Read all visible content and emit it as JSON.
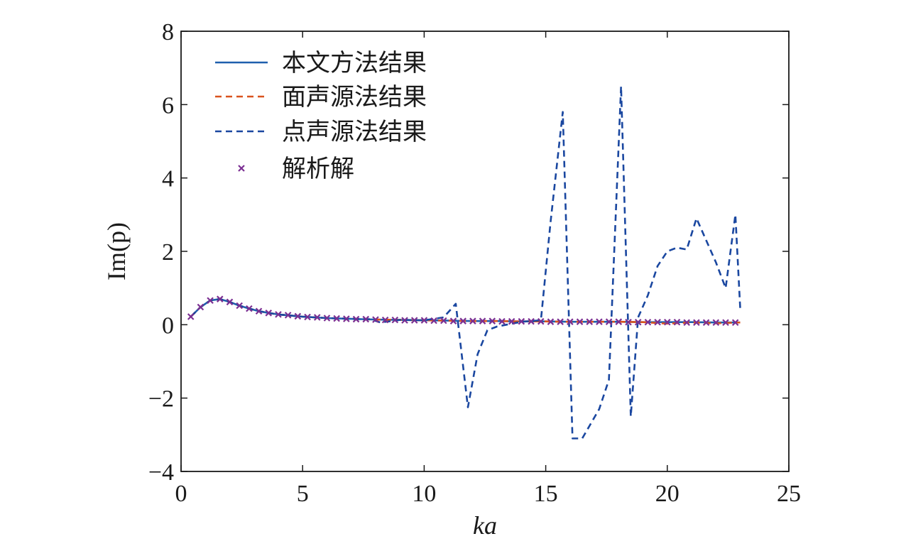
{
  "chart_data": {
    "type": "line",
    "xlabel": "ka",
    "ylabel": "Im(p)",
    "xlim": [
      0,
      25
    ],
    "ylim": [
      -4,
      8
    ],
    "xticks": [
      0,
      5,
      10,
      15,
      20,
      25
    ],
    "yticks": [
      -4,
      -2,
      0,
      2,
      4,
      6,
      8
    ],
    "xtick_labels": [
      "0",
      "5",
      "10",
      "15",
      "20",
      "25"
    ],
    "ytick_labels": [
      "−4",
      "−2",
      "0",
      "2",
      "4",
      "6",
      "8"
    ],
    "grid": false,
    "legend_position": "top-left",
    "series": [
      {
        "name": "本文方法结果",
        "style": "solid",
        "color": "#1f5fae",
        "x": [
          0.4,
          0.8,
          1.2,
          1.6,
          2.0,
          2.4,
          2.8,
          3.2,
          3.6,
          4.0,
          4.5,
          5.0,
          5.5,
          6.0,
          7.0,
          8.0,
          9.0,
          10.0,
          11.0,
          12.0,
          13.0,
          14.0,
          15.0,
          16.0,
          17.0,
          18.0,
          19.0,
          20.0,
          21.0,
          22.0,
          23.0
        ],
        "y": [
          0.22,
          0.48,
          0.66,
          0.7,
          0.62,
          0.52,
          0.44,
          0.37,
          0.32,
          0.28,
          0.25,
          0.22,
          0.2,
          0.18,
          0.16,
          0.14,
          0.13,
          0.12,
          0.11,
          0.1,
          0.1,
          0.09,
          0.09,
          0.08,
          0.08,
          0.08,
          0.07,
          0.07,
          0.07,
          0.06,
          0.06
        ]
      },
      {
        "name": "面声源法结果",
        "style": "dashed",
        "color": "#d9531e",
        "x": [
          0.4,
          0.8,
          1.2,
          1.6,
          2.0,
          2.4,
          2.8,
          3.2,
          3.6,
          4.0,
          4.5,
          5.0,
          5.5,
          6.0,
          7.0,
          8.0,
          9.0,
          10.0,
          11.0,
          12.0,
          13.0,
          14.0,
          15.0,
          16.0,
          17.0,
          18.0,
          19.0,
          20.0,
          21.0,
          22.0,
          23.0
        ],
        "y": [
          0.22,
          0.48,
          0.66,
          0.7,
          0.62,
          0.52,
          0.44,
          0.37,
          0.32,
          0.28,
          0.25,
          0.22,
          0.2,
          0.18,
          0.16,
          0.14,
          0.13,
          0.12,
          0.11,
          0.1,
          0.1,
          0.09,
          0.09,
          0.08,
          0.08,
          0.08,
          0.07,
          0.03,
          0.06,
          0.04,
          0.06
        ]
      },
      {
        "name": "点声源法结果",
        "style": "dashed",
        "color": "#1a47a0",
        "x": [
          0.4,
          0.8,
          1.2,
          1.6,
          2.0,
          2.4,
          2.8,
          3.2,
          3.6,
          4.0,
          4.5,
          5.0,
          5.5,
          6.0,
          7.0,
          7.8,
          8.2,
          9.0,
          10.0,
          10.8,
          11.3,
          11.8,
          12.2,
          12.6,
          13.0,
          14.0,
          14.8,
          15.2,
          15.7,
          16.1,
          16.5,
          17.2,
          17.6,
          18.1,
          18.5,
          18.8,
          19.2,
          19.6,
          20.0,
          20.4,
          20.8,
          21.2,
          21.6,
          22.0,
          22.4,
          22.8,
          23.0
        ],
        "y": [
          0.22,
          0.48,
          0.66,
          0.7,
          0.62,
          0.52,
          0.44,
          0.37,
          0.32,
          0.28,
          0.25,
          0.22,
          0.2,
          0.18,
          0.16,
          0.15,
          0.06,
          0.13,
          0.12,
          0.2,
          0.57,
          -2.25,
          -0.8,
          -0.15,
          -0.05,
          0.08,
          0.12,
          2.8,
          5.8,
          -3.1,
          -3.1,
          -2.3,
          -1.5,
          6.5,
          -2.5,
          0.2,
          0.8,
          1.6,
          2.0,
          2.1,
          2.05,
          2.9,
          2.3,
          1.7,
          1.0,
          3.0,
          0.45
        ]
      },
      {
        "name": "解析解",
        "style": "markers",
        "marker": "x",
        "color": "#7b2f92",
        "x": [
          0.4,
          0.8,
          1.2,
          1.6,
          2.0,
          2.4,
          2.8,
          3.2,
          3.6,
          4.0,
          4.4,
          4.8,
          5.2,
          5.6,
          6.0,
          6.4,
          6.8,
          7.2,
          7.6,
          8.0,
          8.4,
          8.8,
          9.2,
          9.6,
          10.0,
          10.4,
          10.8,
          11.2,
          11.6,
          12.0,
          12.4,
          12.8,
          13.2,
          13.6,
          14.0,
          14.4,
          14.8,
          15.2,
          15.6,
          16.0,
          16.4,
          16.8,
          17.2,
          17.6,
          18.0,
          18.4,
          18.8,
          19.2,
          19.6,
          20.0,
          20.4,
          20.8,
          21.2,
          21.6,
          22.0,
          22.4,
          22.8
        ],
        "y": [
          0.22,
          0.48,
          0.66,
          0.7,
          0.62,
          0.52,
          0.44,
          0.37,
          0.32,
          0.28,
          0.26,
          0.23,
          0.21,
          0.2,
          0.18,
          0.17,
          0.16,
          0.15,
          0.15,
          0.14,
          0.13,
          0.13,
          0.12,
          0.12,
          0.12,
          0.11,
          0.11,
          0.1,
          0.1,
          0.1,
          0.1,
          0.1,
          0.09,
          0.09,
          0.09,
          0.09,
          0.09,
          0.08,
          0.08,
          0.08,
          0.08,
          0.08,
          0.08,
          0.08,
          0.08,
          0.07,
          0.07,
          0.07,
          0.07,
          0.07,
          0.07,
          0.06,
          0.06,
          0.06,
          0.06,
          0.06,
          0.06
        ]
      }
    ]
  }
}
